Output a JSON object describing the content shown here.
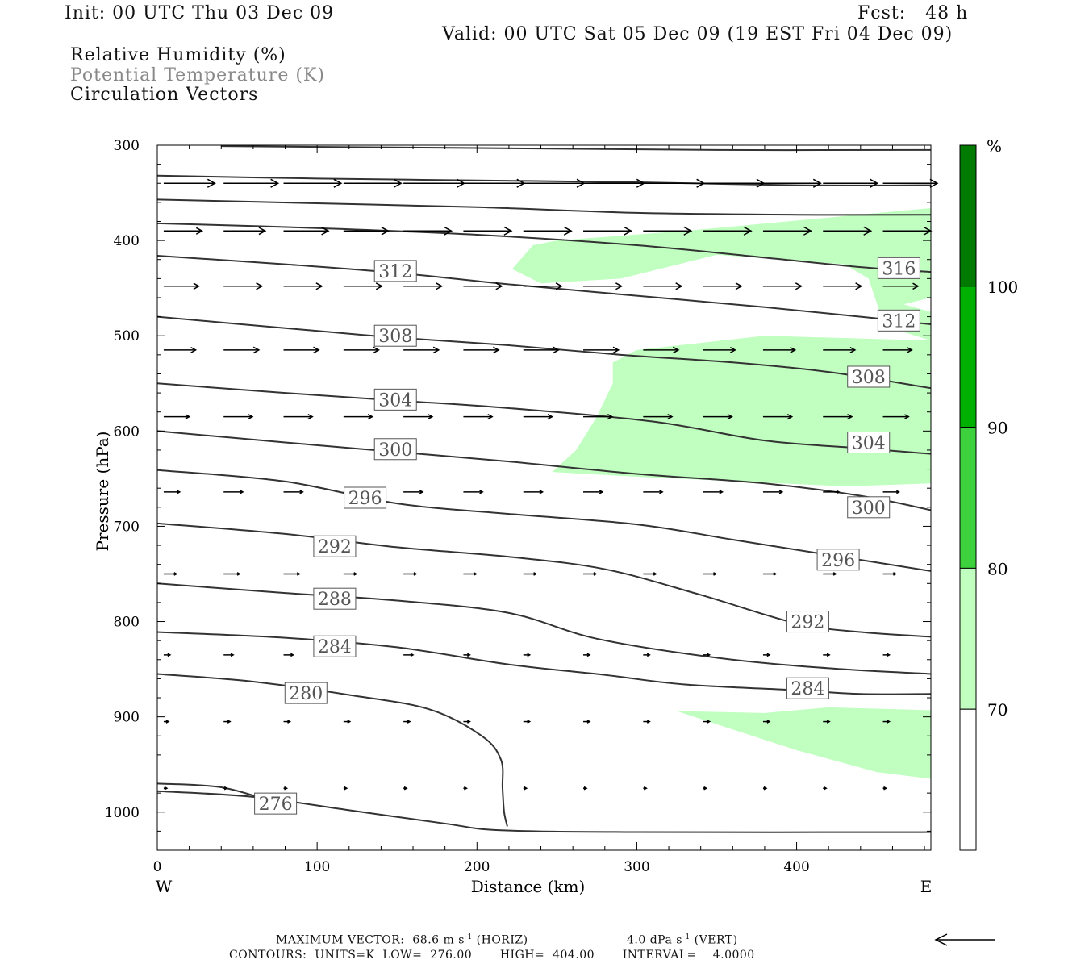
{
  "header": {
    "init": "Init: 00 UTC Thu 03 Dec 09",
    "fcst": "Fcst:   48 h",
    "valid": "Valid: 00 UTC Sat 05 Dec 09 (19 EST Fri 04 Dec 09)",
    "fields": [
      {
        "label": "Relative Humidity (%)",
        "color": "#111111"
      },
      {
        "label": "Potential Temperature (K)",
        "color": "#888888"
      },
      {
        "label": "Circulation Vectors",
        "color": "#111111"
      }
    ]
  },
  "footer": {
    "max_vector": "MAXIMUM VECTOR:  68.6 m s",
    "max_vector_unit_sup": "-1",
    "horiz": " (HORIZ)",
    "vert_val": "4.0 dPa s",
    "vert_sup": "-1",
    "vert": " (VERT)",
    "contours": "CONTOURS:  UNITS=K  LOW=  276.00       HIGH=  404.00       INTERVAL=    4.0000"
  },
  "colors": {
    "rh_70_80": "#c0ffc0",
    "rh_80_90": "#3dd13d",
    "rh_90_100": "#00b000",
    "rh_100": "#007a00",
    "contour": "#333333",
    "vector": "#000000"
  },
  "chart_data": {
    "type": "cross-section",
    "xlabel": "Distance (km)",
    "ylabel": "Pressure (hPa)",
    "xlim": [
      0,
      484
    ],
    "ylim_hpa": [
      300,
      1040
    ],
    "y_log_scale": false,
    "x_ticks": [
      0,
      100,
      200,
      300,
      400
    ],
    "y_ticks": [
      300,
      400,
      500,
      600,
      700,
      800,
      900,
      1000
    ],
    "west_label": "W",
    "east_label": "E",
    "colorbar": {
      "unit": "%",
      "levels": [
        70,
        80,
        90,
        100
      ],
      "bands": [
        {
          "from": 60,
          "to": 70,
          "color": "#ffffff"
        },
        {
          "from": 70,
          "to": 80,
          "color": "#c0ffc0"
        },
        {
          "from": 80,
          "to": 90,
          "color": "#3dd13d"
        },
        {
          "from": 90,
          "to": 100,
          "color": "#00b000"
        },
        {
          "from": 100,
          "to": 110,
          "color": "#007a00"
        }
      ]
    },
    "rh_shaded_regions": [
      {
        "level": "70-80",
        "points": [
          [
            250,
            400
          ],
          [
            330,
            390
          ],
          [
            484,
            366
          ],
          [
            484,
            460
          ],
          [
            467,
            467
          ],
          [
            484,
            475
          ],
          [
            484,
            655
          ],
          [
            430,
            658
          ],
          [
            300,
            648
          ],
          [
            247,
            643
          ],
          [
            262,
            620
          ],
          [
            275,
            585
          ],
          [
            285,
            550
          ],
          [
            285,
            528
          ],
          [
            300,
            515
          ],
          [
            380,
            500
          ],
          [
            484,
            505
          ],
          [
            455,
            490
          ],
          [
            445,
            440
          ],
          [
            430,
            425
          ],
          [
            350,
            415
          ],
          [
            290,
            440
          ],
          [
            240,
            445
          ],
          [
            222,
            430
          ],
          [
            235,
            405
          ]
        ]
      },
      {
        "level": "70-80",
        "points": [
          [
            325,
            894
          ],
          [
            380,
            896
          ],
          [
            420,
            890
          ],
          [
            484,
            893
          ],
          [
            484,
            965
          ],
          [
            450,
            958
          ],
          [
            400,
            935
          ],
          [
            345,
            905
          ]
        ]
      }
    ],
    "theta_contours": [
      {
        "value": 276,
        "label_at": [
          74,
          991
        ],
        "points": [
          [
            0,
            978
          ],
          [
            60,
            984
          ],
          [
            120,
            998
          ],
          [
            180,
            1012
          ],
          [
            215,
            1019
          ],
          [
            300,
            1021
          ],
          [
            484,
            1021
          ]
        ]
      },
      {
        "value": 276,
        "label_at": null,
        "points": [
          [
            0,
            970
          ],
          [
            40,
            974
          ],
          [
            74,
            990
          ]
        ]
      },
      {
        "value": 280,
        "label_at": [
          93,
          875
        ],
        "points": [
          [
            0,
            855
          ],
          [
            60,
            863
          ],
          [
            120,
            877
          ],
          [
            170,
            892
          ],
          [
            203,
            920
          ],
          [
            215,
            945
          ],
          [
            216,
            975
          ],
          [
            217,
            1000
          ],
          [
            219,
            1015
          ]
        ]
      },
      {
        "value": 284,
        "label_at": [
          111,
          826
        ],
        "points": [
          [
            0,
            811
          ],
          [
            80,
            817
          ],
          [
            150,
            827
          ],
          [
            220,
            845
          ],
          [
            280,
            856
          ],
          [
            330,
            866
          ],
          [
            400,
            872
          ],
          [
            440,
            876
          ],
          [
            484,
            876
          ]
        ]
      },
      {
        "value": 284,
        "label_at": [
          407,
          870
        ],
        "points": [
          [
            0,
            811
          ],
          [
            0,
            811
          ]
        ]
      },
      {
        "value": 288,
        "label_at": [
          111,
          776
        ],
        "points": [
          [
            0,
            760
          ],
          [
            80,
            770
          ],
          [
            150,
            778
          ],
          [
            220,
            791
          ],
          [
            275,
            818
          ],
          [
            350,
            838
          ],
          [
            420,
            849
          ],
          [
            484,
            855
          ]
        ]
      },
      {
        "value": 292,
        "label_at": [
          111,
          721
        ],
        "points": [
          [
            0,
            697
          ],
          [
            80,
            708
          ],
          [
            150,
            722
          ],
          [
            220,
            732
          ],
          [
            280,
            745
          ],
          [
            340,
            772
          ],
          [
            400,
            802
          ],
          [
            440,
            811
          ],
          [
            484,
            816
          ]
        ]
      },
      {
        "value": 292,
        "label_at": [
          407,
          800
        ],
        "points": [
          [
            0,
            697
          ],
          [
            0,
            697
          ]
        ]
      },
      {
        "value": 296,
        "label_at": [
          130,
          670
        ],
        "points": [
          [
            0,
            641
          ],
          [
            80,
            653
          ],
          [
            150,
            676
          ],
          [
            220,
            687
          ],
          [
            300,
            698
          ],
          [
            360,
            714
          ],
          [
            420,
            730
          ],
          [
            484,
            747
          ]
        ]
      },
      {
        "value": 296,
        "label_at": [
          426,
          735
        ],
        "points": [
          [
            0,
            641
          ],
          [
            0,
            641
          ]
        ]
      },
      {
        "value": 300,
        "label_at": [
          149,
          619
        ],
        "points": [
          [
            0,
            600
          ],
          [
            80,
            612
          ],
          [
            150,
            622
          ],
          [
            220,
            632
          ],
          [
            300,
            645
          ],
          [
            380,
            655
          ],
          [
            440,
            668
          ],
          [
            484,
            683
          ]
        ]
      },
      {
        "value": 300,
        "label_at": [
          445,
          680
        ],
        "points": [
          [
            0,
            600
          ],
          [
            0,
            600
          ]
        ]
      },
      {
        "value": 304,
        "label_at": [
          149,
          567
        ],
        "points": [
          [
            0,
            550
          ],
          [
            80,
            560
          ],
          [
            150,
            568
          ],
          [
            220,
            576
          ],
          [
            310,
            590
          ],
          [
            380,
            610
          ],
          [
            440,
            618
          ],
          [
            484,
            624
          ]
        ]
      },
      {
        "value": 304,
        "label_at": [
          445,
          612
        ],
        "points": [
          [
            0,
            550
          ],
          [
            0,
            550
          ]
        ]
      },
      {
        "value": 308,
        "label_at": [
          149,
          500
        ],
        "points": [
          [
            0,
            480
          ],
          [
            80,
            492
          ],
          [
            150,
            502
          ],
          [
            220,
            510
          ],
          [
            290,
            520
          ],
          [
            360,
            528
          ],
          [
            420,
            538
          ],
          [
            484,
            555
          ]
        ]
      },
      {
        "value": 308,
        "label_at": [
          445,
          543
        ],
        "points": [
          [
            0,
            480
          ],
          [
            0,
            480
          ]
        ]
      },
      {
        "value": 312,
        "label_at": [
          149,
          432
        ],
        "points": [
          [
            0,
            416
          ],
          [
            80,
            425
          ],
          [
            150,
            434
          ],
          [
            220,
            446
          ],
          [
            300,
            458
          ],
          [
            380,
            470
          ],
          [
            440,
            480
          ],
          [
            484,
            488
          ]
        ]
      },
      {
        "value": 312,
        "label_at": [
          464,
          484
        ],
        "points": [
          [
            0,
            416
          ],
          [
            0,
            416
          ]
        ]
      },
      {
        "value": 316,
        "label_at": [
          464,
          429
        ],
        "points": [
          [
            0,
            382
          ],
          [
            100,
            387
          ],
          [
            200,
            394
          ],
          [
            300,
            405
          ],
          [
            380,
            418
          ],
          [
            440,
            428
          ],
          [
            484,
            433
          ]
        ]
      },
      {
        "value": 320,
        "label_at": null,
        "points": [
          [
            0,
            357
          ],
          [
            100,
            361
          ],
          [
            200,
            365
          ],
          [
            300,
            371
          ],
          [
            400,
            373
          ],
          [
            484,
            373
          ]
        ]
      },
      {
        "value": 324,
        "label_at": null,
        "points": [
          [
            0,
            332
          ],
          [
            100,
            335
          ],
          [
            200,
            337
          ],
          [
            300,
            339
          ],
          [
            400,
            342
          ],
          [
            484,
            342
          ]
        ]
      },
      {
        "value": 328,
        "label_at": null,
        "points": [
          [
            40,
            301
          ],
          [
            200,
            303
          ],
          [
            350,
            305
          ],
          [
            484,
            305
          ]
        ]
      }
    ],
    "circulation_vectors_note": "u/w arrows, lengths in plot units",
    "vector_rows": [
      {
        "p": 340,
        "x_start": 4,
        "dx": 37.5,
        "len": [
          32,
          34,
          36,
          36,
          38,
          38,
          38,
          38,
          38,
          38,
          36,
          34,
          34
        ]
      },
      {
        "p": 390,
        "x_start": 4,
        "dx": 37.5,
        "len": [
          24,
          26,
          28,
          28,
          30,
          30,
          30,
          30,
          30,
          30,
          30,
          30,
          30
        ]
      },
      {
        "p": 448,
        "x_start": 4,
        "dx": 37.5,
        "len": [
          22,
          24,
          24,
          24,
          24,
          24,
          24,
          24,
          24,
          24,
          24,
          24,
          22
        ]
      },
      {
        "p": 515,
        "x_start": 4,
        "dx": 37.5,
        "len": [
          20,
          22,
          22,
          22,
          22,
          22,
          22,
          22,
          22,
          20,
          20,
          20,
          18
        ]
      },
      {
        "p": 585,
        "x_start": 4,
        "dx": 37.5,
        "len": [
          16,
          18,
          18,
          18,
          18,
          18,
          18,
          18,
          18,
          18,
          18,
          18,
          16
        ]
      },
      {
        "p": 664,
        "x_start": 4,
        "dx": 37.5,
        "len": [
          10,
          12,
          12,
          12,
          12,
          12,
          12,
          12,
          12,
          12,
          12,
          10,
          10
        ]
      },
      {
        "p": 750,
        "x_start": 4,
        "dx": 37.5,
        "len": [
          8,
          10,
          10,
          8,
          8,
          8,
          8,
          8,
          8,
          8,
          8,
          8,
          8
        ]
      },
      {
        "p": 835,
        "x_start": 4,
        "dx": 37.5,
        "len": [
          4,
          6,
          6,
          6,
          6,
          4,
          4,
          4,
          4,
          4,
          4,
          4,
          4
        ]
      },
      {
        "p": 905,
        "x_start": 4,
        "dx": 37.5,
        "len": [
          3,
          4,
          4,
          4,
          4,
          4,
          4,
          4,
          4,
          4,
          4,
          4,
          4
        ]
      },
      {
        "p": 975,
        "x_start": 4,
        "dx": 37.5,
        "len": [
          2,
          2,
          2,
          2,
          2,
          2,
          2,
          2,
          2,
          2,
          2,
          2,
          2
        ]
      }
    ]
  }
}
